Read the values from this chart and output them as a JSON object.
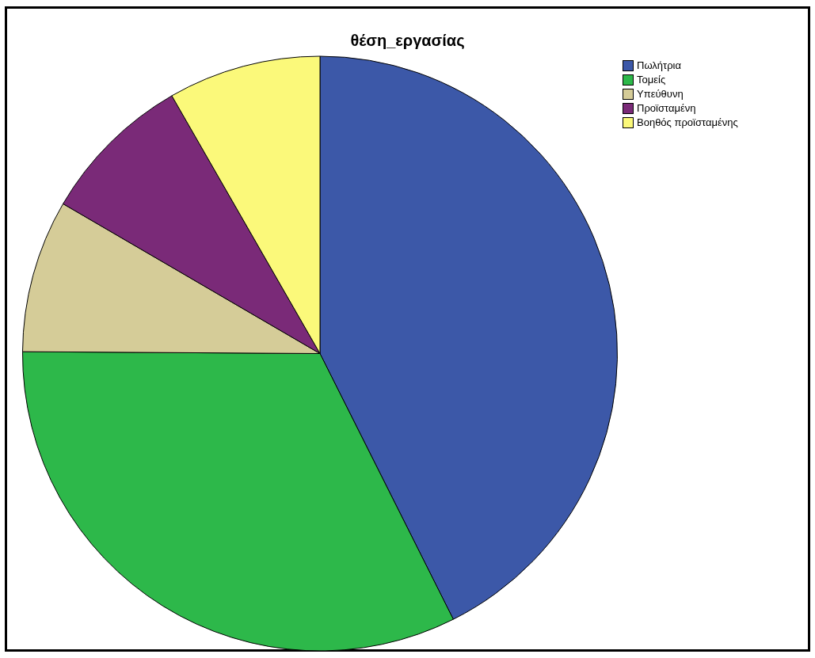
{
  "chart_data": {
    "type": "pie",
    "title": "θέση_εργασίας",
    "categories": [
      "Πωλήτρια",
      "Τομείς",
      "Υπεύθυνη",
      "Προϊσταμένη",
      "Βοηθός προϊσταμένης"
    ],
    "values": [
      42.6,
      32.5,
      8.3,
      8.3,
      8.3
    ],
    "colors": [
      "#3c58a8",
      "#2db84a",
      "#d5cc98",
      "#7a2a78",
      "#fbf97a"
    ],
    "legend": "top right"
  }
}
